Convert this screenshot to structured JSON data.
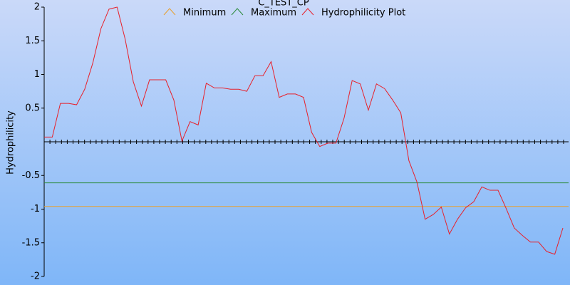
{
  "chart_data": {
    "type": "line",
    "title": "C_TEST_CP",
    "y_label": "Hydrophilicity",
    "ylim": [
      -2,
      2
    ],
    "yticks": [
      -2,
      -1.5,
      -1,
      -0.5,
      0.5,
      1,
      1.5,
      2
    ],
    "legend": "top",
    "series": [
      {
        "name": "Minimum",
        "color": "#e8a030",
        "value": -0.96
      },
      {
        "name": "Maximum",
        "color": "#2a8a3a",
        "value": -0.61
      },
      {
        "name": "Hydrophilicity Plot",
        "color": "#e8202a",
        "values": [
          0.07,
          0.07,
          0.57,
          0.57,
          0.55,
          0.78,
          1.17,
          1.68,
          1.97,
          2.0,
          1.52,
          0.89,
          0.53,
          0.92,
          0.92,
          0.92,
          0.62,
          0.01,
          0.3,
          0.25,
          0.87,
          0.8,
          0.8,
          0.78,
          0.78,
          0.75,
          0.98,
          0.98,
          1.19,
          0.66,
          0.71,
          0.71,
          0.66,
          0.14,
          -0.07,
          -0.02,
          -0.02,
          0.35,
          0.91,
          0.86,
          0.47,
          0.86,
          0.79,
          0.62,
          0.43,
          -0.28,
          -0.6,
          -1.15,
          -1.08,
          -0.97,
          -1.37,
          -1.15,
          -0.98,
          -0.89,
          -0.67,
          -0.72,
          -0.72,
          -0.99,
          -1.28,
          -1.39,
          -1.49,
          -1.49,
          -1.63,
          -1.67,
          -1.28
        ]
      }
    ]
  }
}
